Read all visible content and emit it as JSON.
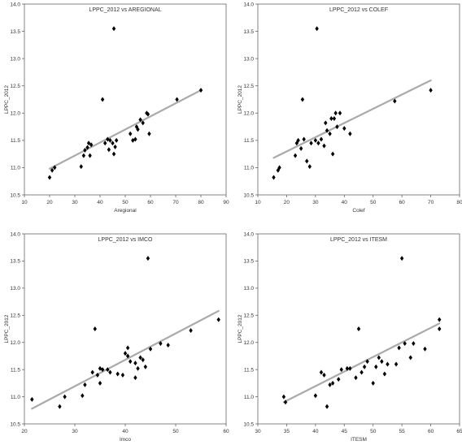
{
  "chart_data": [
    {
      "type": "scatter",
      "title": "LPPC_2012 vs AREGIONAL",
      "xlabel": "Aregional",
      "ylabel": "LPPC_2012",
      "xlim": [
        10,
        90
      ],
      "ylim": [
        10.5,
        14.0
      ],
      "xticks": [
        10,
        20,
        30,
        40,
        50,
        60,
        70,
        80,
        90
      ],
      "yticks": [
        10.5,
        11.0,
        11.5,
        12.0,
        12.5,
        13.0,
        13.5,
        14.0
      ],
      "points": [
        [
          20,
          10.82
        ],
        [
          21,
          10.95
        ],
        [
          22,
          11.0
        ],
        [
          32.5,
          11.02
        ],
        [
          33.5,
          11.22
        ],
        [
          34,
          11.32
        ],
        [
          35,
          11.37
        ],
        [
          35.5,
          11.45
        ],
        [
          36,
          11.22
        ],
        [
          36.5,
          11.42
        ],
        [
          41,
          12.25
        ],
        [
          42,
          11.45
        ],
        [
          43,
          11.52
        ],
        [
          43.5,
          11.33
        ],
        [
          44,
          11.5
        ],
        [
          45,
          11.45
        ],
        [
          45.5,
          11.25
        ],
        [
          46,
          11.38
        ],
        [
          46.5,
          11.5
        ],
        [
          45.5,
          13.55
        ],
        [
          52,
          11.62
        ],
        [
          53,
          11.5
        ],
        [
          54,
          11.52
        ],
        [
          54.5,
          11.75
        ],
        [
          55,
          11.7
        ],
        [
          56,
          11.88
        ],
        [
          57,
          11.82
        ],
        [
          58.5,
          12.0
        ],
        [
          59,
          11.98
        ],
        [
          59.5,
          11.62
        ],
        [
          70.5,
          12.25
        ],
        [
          80,
          12.42
        ]
      ],
      "trend": [
        [
          20,
          10.98
        ],
        [
          80,
          12.42
        ]
      ],
      "colors": {
        "marker": "#000000",
        "trend": "#aaaaaa"
      }
    },
    {
      "type": "scatter",
      "title": "LPPC_2012 vs COLEF",
      "xlabel": "Colef",
      "ylabel": "LPPC_2012",
      "xlim": [
        10,
        80
      ],
      "ylim": [
        10.5,
        14.0
      ],
      "xticks": [
        10,
        20,
        30,
        40,
        50,
        60,
        70,
        80
      ],
      "yticks": [
        10.5,
        11.0,
        11.5,
        12.0,
        12.5,
        13.0,
        13.5,
        14.0
      ],
      "points": [
        [
          15.5,
          10.82
        ],
        [
          17,
          10.95
        ],
        [
          17.5,
          11.0
        ],
        [
          23,
          11.22
        ],
        [
          23.5,
          11.45
        ],
        [
          24,
          11.5
        ],
        [
          25,
          11.35
        ],
        [
          25.5,
          12.25
        ],
        [
          26,
          11.52
        ],
        [
          27,
          11.12
        ],
        [
          28,
          11.02
        ],
        [
          28.5,
          11.45
        ],
        [
          30,
          11.5
        ],
        [
          30.5,
          13.55
        ],
        [
          31,
          11.45
        ],
        [
          32,
          11.52
        ],
        [
          33,
          11.4
        ],
        [
          33.5,
          11.82
        ],
        [
          34,
          11.68
        ],
        [
          35,
          11.62
        ],
        [
          35.5,
          11.9
        ],
        [
          36,
          11.25
        ],
        [
          36.5,
          11.9
        ],
        [
          37,
          12.0
        ],
        [
          37.5,
          11.75
        ],
        [
          38.5,
          12.0
        ],
        [
          40,
          11.72
        ],
        [
          42,
          11.62
        ],
        [
          57.5,
          12.22
        ],
        [
          70,
          12.42
        ]
      ],
      "trend": [
        [
          15.5,
          11.18
        ],
        [
          70,
          12.6
        ]
      ],
      "colors": {
        "marker": "#000000",
        "trend": "#aaaaaa"
      }
    },
    {
      "type": "scatter",
      "title": "LPPC_2012 vs IMCO",
      "xlabel": "Imco",
      "ylabel": "LPPC_2012",
      "xlim": [
        20,
        60
      ],
      "ylim": [
        10.5,
        14.0
      ],
      "xticks": [
        20,
        30,
        40,
        50,
        60
      ],
      "yticks": [
        10.5,
        11.0,
        11.5,
        12.0,
        12.5,
        13.0,
        13.5,
        14.0
      ],
      "points": [
        [
          21.5,
          10.95
        ],
        [
          27,
          10.82
        ],
        [
          28,
          11.0
        ],
        [
          31.5,
          11.02
        ],
        [
          32,
          11.22
        ],
        [
          33.5,
          11.45
        ],
        [
          34,
          12.25
        ],
        [
          34.5,
          11.4
        ],
        [
          35,
          11.52
        ],
        [
          35.5,
          11.5
        ],
        [
          35,
          11.25
        ],
        [
          36.5,
          11.5
        ],
        [
          37,
          11.45
        ],
        [
          38.5,
          11.42
        ],
        [
          39.5,
          11.4
        ],
        [
          40,
          11.8
        ],
        [
          40.5,
          11.9
        ],
        [
          40.5,
          11.75
        ],
        [
          41,
          11.65
        ],
        [
          42,
          11.35
        ],
        [
          42.5,
          11.52
        ],
        [
          42,
          11.62
        ],
        [
          43,
          11.72
        ],
        [
          43.5,
          11.68
        ],
        [
          44,
          11.55
        ],
        [
          44.5,
          13.55
        ],
        [
          45,
          11.88
        ],
        [
          47,
          11.98
        ],
        [
          48.5,
          11.95
        ],
        [
          53,
          12.22
        ],
        [
          58.5,
          12.42
        ]
      ],
      "trend": [
        [
          21.5,
          10.78
        ],
        [
          58.5,
          12.58
        ]
      ],
      "colors": {
        "marker": "#000000",
        "trend": "#aaaaaa"
      }
    },
    {
      "type": "scatter",
      "title": "LPPC_2012 vs ITESM",
      "xlabel": "ITESM",
      "ylabel": "LPPC_2012",
      "xlim": [
        30,
        65
      ],
      "ylim": [
        10.5,
        14.0
      ],
      "xticks": [
        30,
        35,
        40,
        45,
        50,
        55,
        60,
        65
      ],
      "yticks": [
        10.5,
        11.0,
        11.5,
        12.0,
        12.5,
        13.0,
        13.5,
        14.0
      ],
      "points": [
        [
          34.5,
          11.0
        ],
        [
          34.8,
          10.9
        ],
        [
          40,
          11.02
        ],
        [
          41,
          11.45
        ],
        [
          41.5,
          11.4
        ],
        [
          42,
          10.82
        ],
        [
          42.5,
          11.22
        ],
        [
          43,
          11.25
        ],
        [
          44,
          11.32
        ],
        [
          44.5,
          11.5
        ],
        [
          45.5,
          11.52
        ],
        [
          46,
          11.52
        ],
        [
          47,
          11.35
        ],
        [
          47.5,
          12.25
        ],
        [
          48,
          11.45
        ],
        [
          48.5,
          11.55
        ],
        [
          49,
          11.65
        ],
        [
          50,
          11.25
        ],
        [
          50.5,
          11.55
        ],
        [
          51,
          11.72
        ],
        [
          51.5,
          11.65
        ],
        [
          52,
          11.42
        ],
        [
          52.5,
          11.6
        ],
        [
          54,
          11.6
        ],
        [
          54.5,
          11.9
        ],
        [
          55,
          13.55
        ],
        [
          55.5,
          11.98
        ],
        [
          56.5,
          11.72
        ],
        [
          57,
          11.98
        ],
        [
          59,
          11.88
        ],
        [
          61.5,
          12.25
        ],
        [
          61.5,
          12.42
        ]
      ],
      "trend": [
        [
          34.5,
          10.9
        ],
        [
          61.5,
          12.35
        ]
      ],
      "colors": {
        "marker": "#000000",
        "trend": "#aaaaaa"
      }
    }
  ]
}
